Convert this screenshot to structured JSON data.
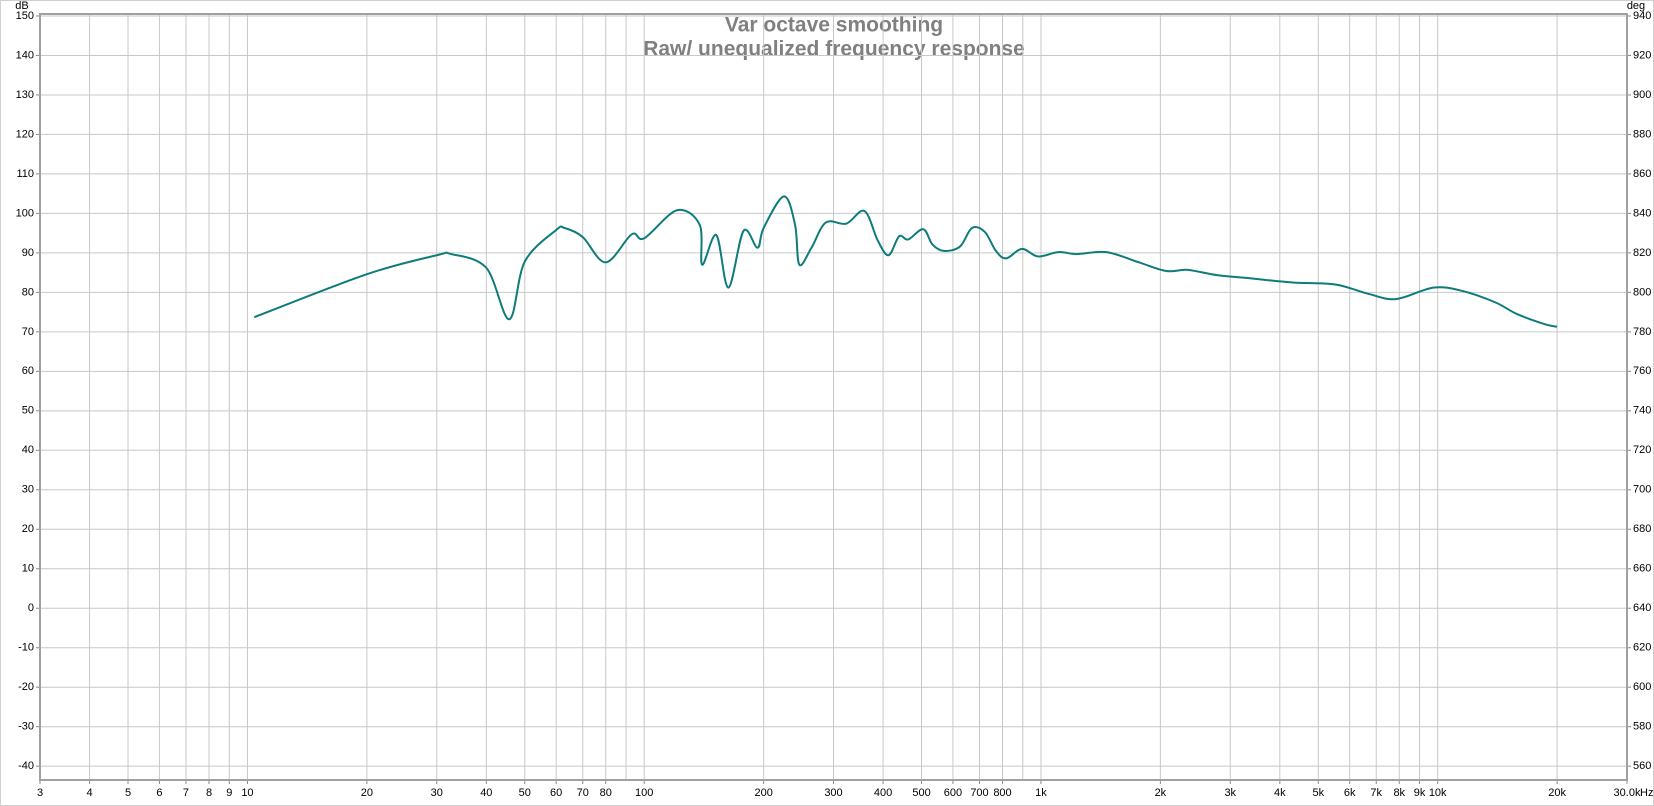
{
  "chart_data": {
    "type": "line",
    "title": "Var octave smoothing",
    "subtitle": "Raw/ unequalized frequency response",
    "y_label": "dB",
    "y2_label": "deg",
    "x_unit": "Hz",
    "x_scale": "log",
    "grid": true,
    "xlim": [
      3,
      30000
    ],
    "ylim": [
      -43.5,
      150.5
    ],
    "y2lim": [
      553,
      941
    ],
    "xticks": [
      3,
      4,
      5,
      6,
      7,
      8,
      9,
      10,
      20,
      30,
      40,
      50,
      60,
      70,
      80,
      100,
      200,
      300,
      400,
      500,
      600,
      700,
      800,
      {
        "value": 1000,
        "label": "1k"
      },
      {
        "value": 2000,
        "label": "2k"
      },
      {
        "value": 3000,
        "label": "3k"
      },
      {
        "value": 4000,
        "label": "4k"
      },
      {
        "value": 5000,
        "label": "5k"
      },
      {
        "value": 6000,
        "label": "6k"
      },
      {
        "value": 7000,
        "label": "7k"
      },
      {
        "value": 8000,
        "label": "8k"
      },
      {
        "value": 9000,
        "label": "9k"
      },
      {
        "value": 10000,
        "label": "10k"
      },
      {
        "value": 20000,
        "label": "20k"
      },
      {
        "value": 30000,
        "label": "30.0k"
      }
    ],
    "xminor": [
      90,
      900
    ],
    "yticks": [
      -40,
      -30,
      -20,
      -10,
      0,
      10,
      20,
      30,
      40,
      50,
      60,
      70,
      80,
      90,
      100,
      110,
      120,
      130,
      140,
      150
    ],
    "y2ticks": [
      560,
      580,
      600,
      620,
      640,
      660,
      680,
      700,
      720,
      740,
      760,
      780,
      800,
      820,
      840,
      860,
      880,
      900,
      920,
      940
    ],
    "x": [
      10.4,
      20,
      30,
      32.6,
      40,
      45.7,
      50,
      60,
      63,
      70,
      80,
      93,
      100,
      121,
      138,
      140,
      152,
      163,
      178,
      193,
      200,
      225,
      240,
      246,
      264,
      287,
      323,
      359,
      388,
      413,
      439,
      463,
      505,
      533,
      569,
      625,
      670,
      722,
      770,
      817,
      895,
      983,
      1106,
      1230,
      1463,
      1765,
      2070,
      2340,
      2763,
      3340,
      4310,
      5520,
      6700,
      7850,
      9750,
      11500,
      13950,
      15850,
      18660,
      20000
    ],
    "series": [
      {
        "color": "#0e7c7b",
        "values": [
          73.7,
          84.6,
          89.4,
          89.7,
          86.2,
          73.2,
          87.8,
          95.8,
          96.3,
          94,
          87.6,
          94.7,
          93.7,
          100.8,
          97.1,
          87,
          94.5,
          81.2,
          95.6,
          91.3,
          96.3,
          104.3,
          97.1,
          87,
          91.3,
          97.7,
          97.4,
          100.6,
          93.1,
          89.4,
          94.2,
          93.4,
          96,
          92.1,
          90.5,
          91.6,
          96.3,
          95.3,
          90.5,
          88.6,
          91,
          89.1,
          90.2,
          89.7,
          90.2,
          87.6,
          85.4,
          85.7,
          84.4,
          83.6,
          82.5,
          82,
          79.6,
          78.3,
          81.2,
          80.4,
          77.5,
          74.5,
          71.9,
          71.3
        ]
      }
    ]
  }
}
